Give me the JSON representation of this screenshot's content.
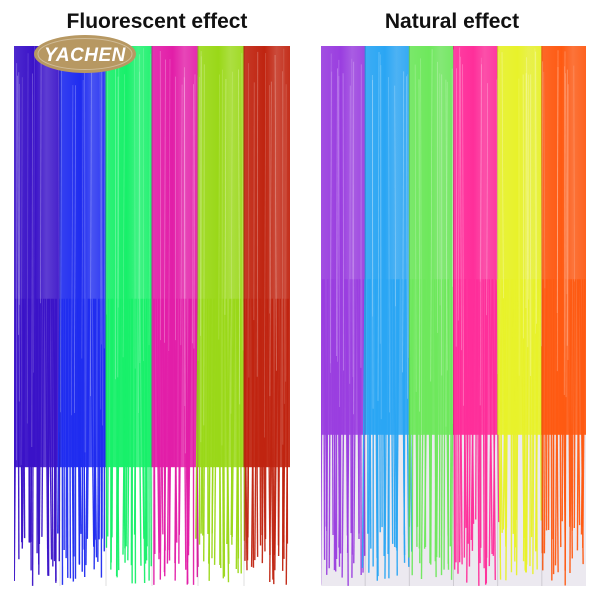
{
  "panels": [
    {
      "title": "Fluorescent effect",
      "strips": [
        "#3a12c8",
        "#1f2cf0",
        "#18f06a",
        "#e21ea8",
        "#9ad818",
        "#c02410"
      ],
      "background": "#ffffff"
    },
    {
      "title": "Natural effect",
      "strips": [
        "#9a3ee0",
        "#2aa6f4",
        "#6ee85c",
        "#ff2e9a",
        "#e8f22a",
        "#ff5a12"
      ],
      "background": "#ece9f0"
    }
  ],
  "logo": {
    "text": "YACHEN",
    "color": "#b79862",
    "text_color": "#ffffff"
  }
}
